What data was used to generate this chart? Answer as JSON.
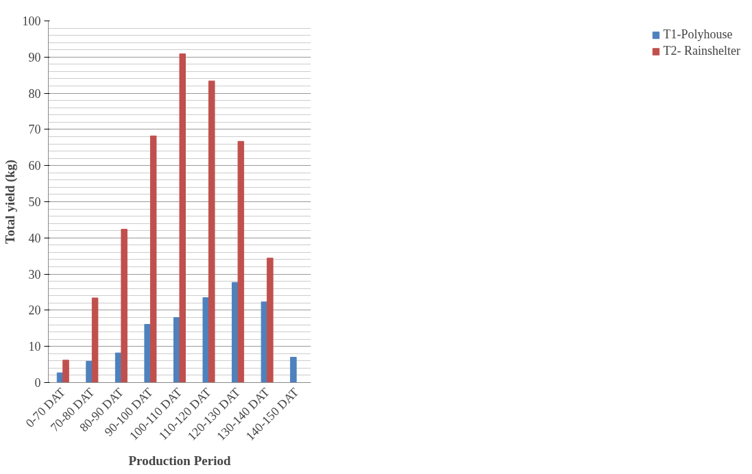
{
  "chart_data": {
    "type": "bar",
    "xlabel": "Production Period",
    "ylabel": "Total yield (kg)",
    "categories": [
      "0-70 DAT",
      "70-80 DAT",
      "80-90 DAT",
      "90-100 DAT",
      "100-110 DAT",
      "110-120 DAT",
      "120-130 DAT",
      "130-140 DAT",
      "140-150 DAT"
    ],
    "series": [
      {
        "name": "T1-Polyhouse",
        "color": "#4f81bd",
        "values": [
          2.7,
          5.9,
          8.2,
          16.1,
          18,
          23.5,
          27.7,
          22.3,
          7
        ]
      },
      {
        "name": "T2- Rainshelter",
        "color": "#c0504d",
        "values": [
          6.2,
          23.4,
          42.4,
          68.2,
          90.9,
          83.4,
          66.7,
          34.4,
          null
        ]
      }
    ],
    "ylim": [
      0,
      100
    ],
    "yticks": [
      0,
      10,
      20,
      30,
      40,
      50,
      60,
      70,
      80,
      90,
      100
    ],
    "grid": "y",
    "legend": "right"
  }
}
